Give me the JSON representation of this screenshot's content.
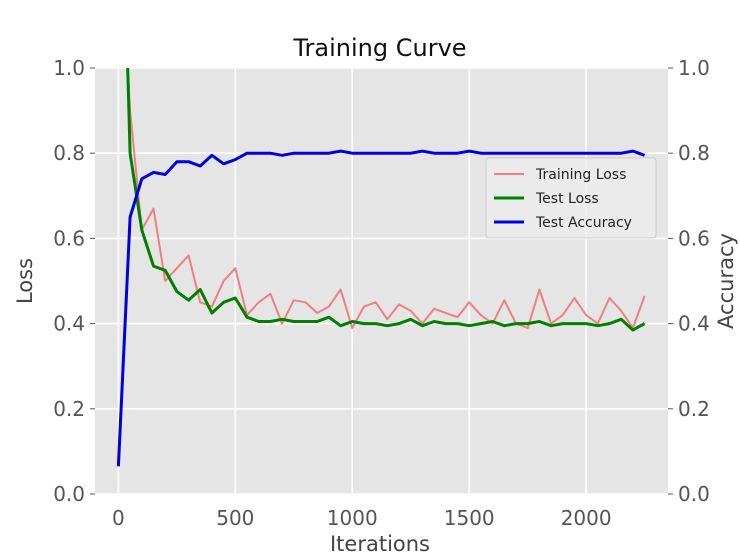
{
  "chart_data": {
    "type": "line",
    "title": "Training Curve",
    "xlabel": "Iterations",
    "ylabel": "Loss",
    "y2label": "Accuracy",
    "xlim": [
      -100,
      2350
    ],
    "ylim": [
      0,
      1.0
    ],
    "y2lim": [
      0,
      1.0
    ],
    "x_ticks": [
      "0",
      "500",
      "1000",
      "1500",
      "2000"
    ],
    "x_tick_values": [
      0,
      500,
      1000,
      1500,
      2000
    ],
    "y_ticks": [
      "0.0",
      "0.2",
      "0.4",
      "0.6",
      "0.8",
      "1.0"
    ],
    "y_tick_values": [
      0,
      0.2,
      0.4,
      0.6,
      0.8,
      1.0
    ],
    "y2_ticks": [
      "0.0",
      "0.2",
      "0.4",
      "0.6",
      "0.8",
      "1.0"
    ],
    "grid": true,
    "legend_position": "right",
    "background": "#e5e5e5",
    "series": [
      {
        "name": "Training Loss",
        "color": "#f08080",
        "axis": "left",
        "x": [
          40,
          50,
          100,
          150,
          200,
          250,
          300,
          350,
          400,
          450,
          500,
          550,
          600,
          650,
          700,
          750,
          800,
          850,
          900,
          950,
          1000,
          1050,
          1100,
          1150,
          1200,
          1250,
          1300,
          1350,
          1400,
          1450,
          1500,
          1550,
          1600,
          1650,
          1700,
          1750,
          1800,
          1850,
          1900,
          1950,
          2000,
          2050,
          2100,
          2150,
          2200,
          2250
        ],
        "values": [
          1.0,
          0.9,
          0.62,
          0.67,
          0.5,
          0.53,
          0.56,
          0.45,
          0.44,
          0.5,
          0.53,
          0.42,
          0.45,
          0.47,
          0.4,
          0.455,
          0.45,
          0.425,
          0.44,
          0.48,
          0.39,
          0.44,
          0.45,
          0.41,
          0.445,
          0.43,
          0.4,
          0.435,
          0.425,
          0.415,
          0.45,
          0.42,
          0.4,
          0.455,
          0.4,
          0.39,
          0.48,
          0.4,
          0.42,
          0.46,
          0.42,
          0.4,
          0.46,
          0.43,
          0.39,
          0.465
        ]
      },
      {
        "name": "Test Loss",
        "color": "#008000",
        "axis": "left",
        "x": [
          40,
          50,
          100,
          150,
          200,
          250,
          300,
          350,
          400,
          450,
          500,
          550,
          600,
          650,
          700,
          750,
          800,
          850,
          900,
          950,
          1000,
          1050,
          1100,
          1150,
          1200,
          1250,
          1300,
          1350,
          1400,
          1450,
          1500,
          1550,
          1600,
          1650,
          1700,
          1750,
          1800,
          1850,
          1900,
          1950,
          2000,
          2050,
          2100,
          2150,
          2200,
          2250
        ],
        "values": [
          1.0,
          0.8,
          0.62,
          0.535,
          0.525,
          0.475,
          0.455,
          0.48,
          0.425,
          0.45,
          0.46,
          0.415,
          0.405,
          0.405,
          0.41,
          0.405,
          0.405,
          0.405,
          0.415,
          0.395,
          0.405,
          0.4,
          0.4,
          0.395,
          0.4,
          0.41,
          0.395,
          0.405,
          0.4,
          0.4,
          0.395,
          0.4,
          0.405,
          0.395,
          0.4,
          0.4,
          0.405,
          0.395,
          0.4,
          0.4,
          0.4,
          0.395,
          0.4,
          0.41,
          0.385,
          0.4
        ]
      },
      {
        "name": "Test Accuracy",
        "color": "#0000e0",
        "axis": "right",
        "x": [
          0,
          50,
          100,
          150,
          200,
          250,
          300,
          350,
          400,
          450,
          500,
          550,
          600,
          650,
          700,
          750,
          800,
          850,
          900,
          950,
          1000,
          1050,
          1100,
          1150,
          1200,
          1250,
          1300,
          1350,
          1400,
          1450,
          1500,
          1550,
          1600,
          1650,
          1700,
          1750,
          1800,
          1850,
          1900,
          1950,
          2000,
          2050,
          2100,
          2150,
          2200,
          2250
        ],
        "values": [
          0.065,
          0.65,
          0.74,
          0.755,
          0.75,
          0.78,
          0.78,
          0.77,
          0.795,
          0.775,
          0.785,
          0.8,
          0.8,
          0.8,
          0.795,
          0.8,
          0.8,
          0.8,
          0.8,
          0.805,
          0.8,
          0.8,
          0.8,
          0.8,
          0.8,
          0.8,
          0.805,
          0.8,
          0.8,
          0.8,
          0.805,
          0.8,
          0.8,
          0.8,
          0.8,
          0.8,
          0.8,
          0.8,
          0.8,
          0.8,
          0.8,
          0.8,
          0.8,
          0.8,
          0.805,
          0.795
        ]
      }
    ]
  }
}
